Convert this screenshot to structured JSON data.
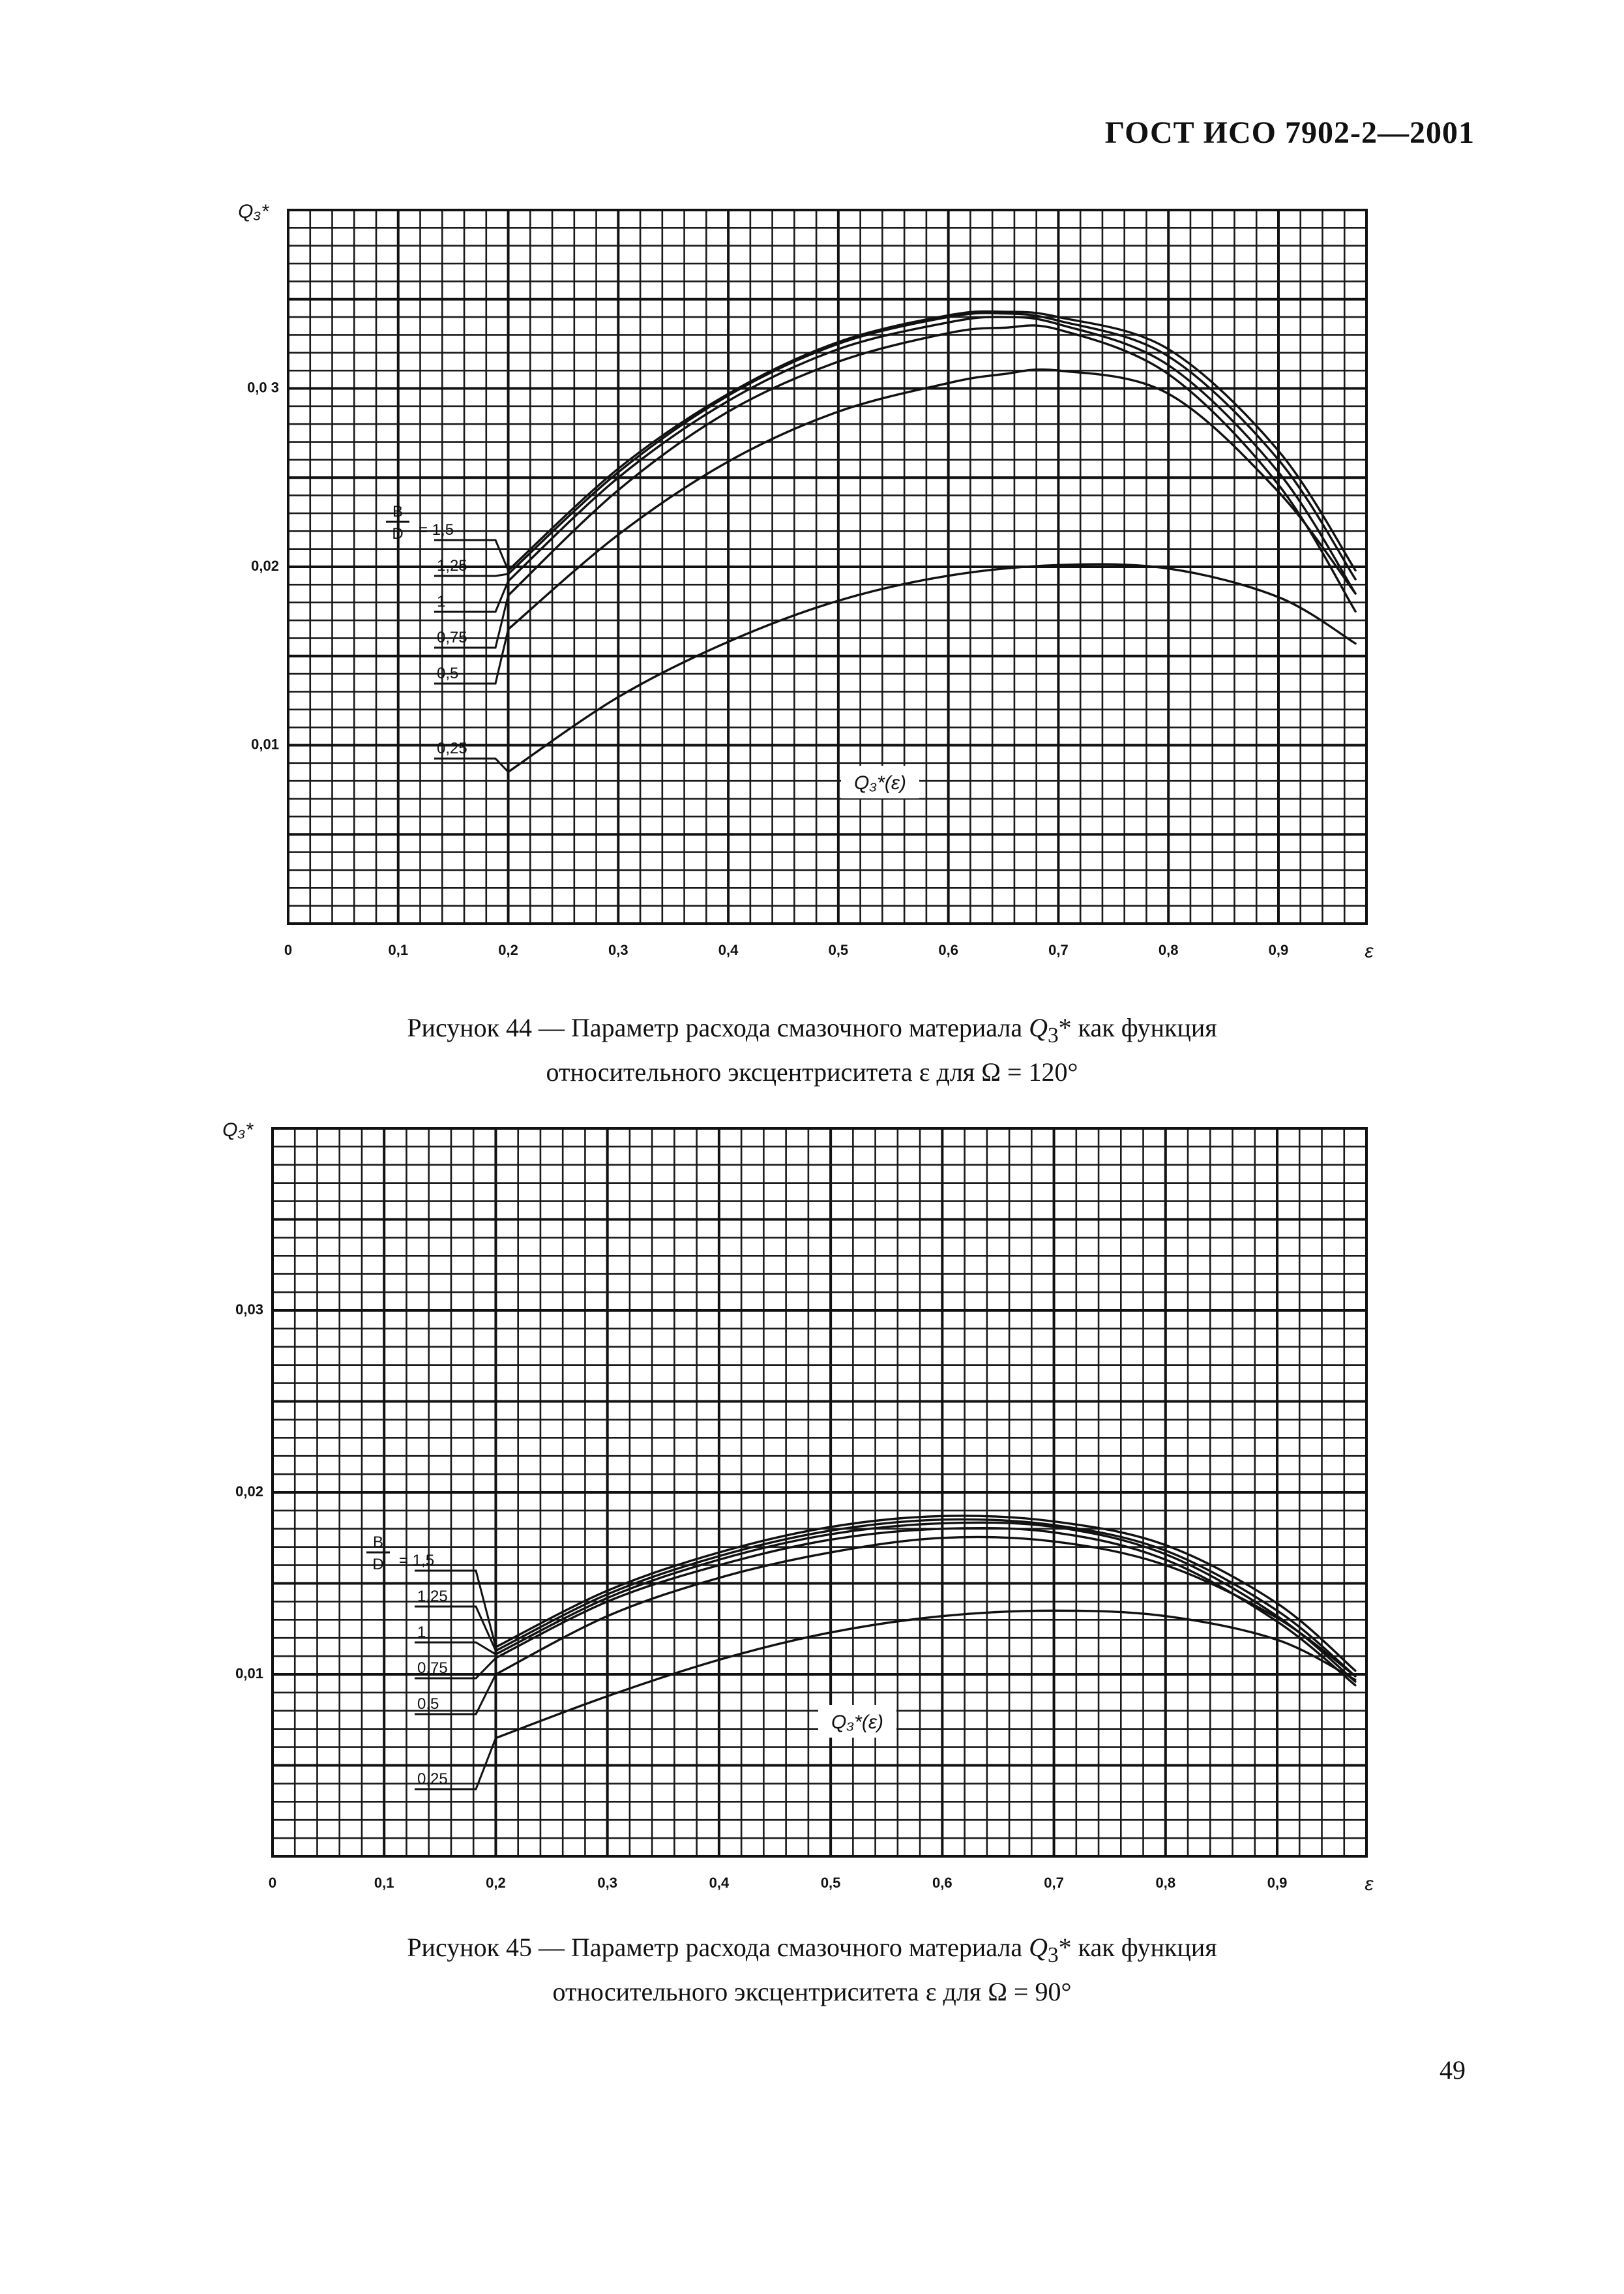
{
  "header": {
    "standard": "ГОСТ ИСО 7902-2—2001"
  },
  "page": {
    "number": "49"
  },
  "figures": [
    {
      "caption": {
        "line1_prefix": "Рисунок 44 — Параметр расхода смазочного материала ",
        "symbol": "Q",
        "symbol_sub": "3",
        "symbol_sup": "*",
        "line1_suffix": " как функция",
        "line2": "относительного эксцентриситета ε для Ω = 120°"
      },
      "y_axis_symbol": "Q₃*",
      "x_axis_symbol": "ε",
      "function_label": "Q₃*(ε)",
      "bd_label": "B/D",
      "series_labels": [
        "= 1,5",
        "1,25",
        "1",
        "0,75",
        "0,5",
        "0,25"
      ]
    },
    {
      "caption": {
        "line1_prefix": "Рисунок 45 — Параметр расхода смазочного материала ",
        "symbol": "Q",
        "symbol_sub": "3",
        "symbol_sup": "*",
        "line1_suffix": " как функция",
        "line2": "относительного эксцентриситета ε для Ω = 90°"
      },
      "y_axis_symbol": "Q₃*",
      "x_axis_symbol": "ε",
      "function_label": "Q₃*(ε)",
      "bd_label": "B/D",
      "series_labels": [
        "= 1,5",
        "1,25",
        "1",
        "0,75",
        "0,5",
        "0,25"
      ]
    }
  ],
  "chart_data": [
    {
      "type": "line",
      "xlabel": "ε",
      "ylabel": "Q₃*",
      "xlim": [
        0,
        0.98
      ],
      "ylim": [
        0,
        0.04
      ],
      "x_ticks": [
        "0",
        "0,1",
        "0,2",
        "0,3",
        "0,4",
        "0,5",
        "0,6",
        "0,7",
        "0,8",
        "0,9"
      ],
      "y_ticks": [
        {
          "value": 0.01,
          "label": "0,01"
        },
        {
          "value": 0.02,
          "label": "0,02"
        },
        {
          "value": 0.03,
          "label": "0,0 3"
        }
      ],
      "grid": true,
      "series": [
        {
          "name": "1,5",
          "x": [
            0.2,
            0.3,
            0.4,
            0.5,
            0.6,
            0.65,
            0.7,
            0.8,
            0.9,
            0.97
          ],
          "y": [
            0.0198,
            0.0255,
            0.0297,
            0.0326,
            0.0341,
            0.0343,
            0.034,
            0.0322,
            0.0265,
            0.0198
          ]
        },
        {
          "name": "1,25",
          "x": [
            0.2,
            0.3,
            0.4,
            0.5,
            0.6,
            0.65,
            0.7,
            0.8,
            0.9,
            0.97
          ],
          "y": [
            0.0196,
            0.0253,
            0.0296,
            0.0325,
            0.034,
            0.0342,
            0.0338,
            0.0318,
            0.026,
            0.0193
          ]
        },
        {
          "name": "1",
          "x": [
            0.2,
            0.3,
            0.4,
            0.5,
            0.6,
            0.65,
            0.7,
            0.8,
            0.9,
            0.97
          ],
          "y": [
            0.0192,
            0.025,
            0.0293,
            0.0322,
            0.0337,
            0.034,
            0.0336,
            0.0313,
            0.0253,
            0.0185
          ]
        },
        {
          "name": "0,75",
          "x": [
            0.2,
            0.3,
            0.4,
            0.5,
            0.6,
            0.65,
            0.7,
            0.8,
            0.9,
            0.97
          ],
          "y": [
            0.0184,
            0.0243,
            0.0287,
            0.0315,
            0.0331,
            0.0334,
            0.0333,
            0.0308,
            0.0246,
            0.0175
          ]
        },
        {
          "name": "0,5",
          "x": [
            0.2,
            0.3,
            0.4,
            0.5,
            0.6,
            0.65,
            0.7,
            0.8,
            0.9,
            0.97
          ],
          "y": [
            0.0165,
            0.0218,
            0.0259,
            0.0287,
            0.0303,
            0.0308,
            0.031,
            0.0297,
            0.0242,
            0.0185
          ]
        },
        {
          "name": "0,25",
          "x": [
            0.2,
            0.3,
            0.4,
            0.5,
            0.6,
            0.7,
            0.8,
            0.9,
            0.97
          ],
          "y": [
            0.0085,
            0.0127,
            0.0158,
            0.0181,
            0.0195,
            0.0201,
            0.0199,
            0.0183,
            0.0157
          ]
        }
      ]
    },
    {
      "type": "line",
      "xlabel": "ε",
      "ylabel": "Q₃*",
      "xlim": [
        0,
        0.98
      ],
      "ylim": [
        0,
        0.04
      ],
      "x_ticks": [
        "0",
        "0,1",
        "0,2",
        "0,3",
        "0,4",
        "0,5",
        "0,6",
        "0,7",
        "0,8",
        "0,9"
      ],
      "y_ticks": [
        {
          "value": 0.01,
          "label": "0,01"
        },
        {
          "value": 0.02,
          "label": "0,02"
        },
        {
          "value": 0.03,
          "label": "0,03"
        }
      ],
      "grid": true,
      "series": [
        {
          "name": "1,5",
          "x": [
            0.2,
            0.3,
            0.4,
            0.5,
            0.6,
            0.7,
            0.8,
            0.9,
            0.97
          ],
          "y": [
            0.0115,
            0.0146,
            0.0167,
            0.0181,
            0.0187,
            0.0184,
            0.0171,
            0.0139,
            0.0102
          ]
        },
        {
          "name": "1,25",
          "x": [
            0.2,
            0.3,
            0.4,
            0.5,
            0.6,
            0.7,
            0.8,
            0.9,
            0.97
          ],
          "y": [
            0.0113,
            0.0144,
            0.0165,
            0.0179,
            0.0185,
            0.0182,
            0.0168,
            0.0135,
            0.0099
          ]
        },
        {
          "name": "1",
          "x": [
            0.2,
            0.3,
            0.4,
            0.5,
            0.6,
            0.7,
            0.8,
            0.9,
            0.97
          ],
          "y": [
            0.0111,
            0.0142,
            0.0163,
            0.0177,
            0.0183,
            0.0181,
            0.0166,
            0.0132,
            0.0096
          ]
        },
        {
          "name": "0,75",
          "x": [
            0.2,
            0.3,
            0.4,
            0.5,
            0.6,
            0.7,
            0.8,
            0.9,
            0.97
          ],
          "y": [
            0.0109,
            0.014,
            0.016,
            0.0174,
            0.018,
            0.0178,
            0.0163,
            0.0129,
            0.0094
          ]
        },
        {
          "name": "0,5",
          "x": [
            0.2,
            0.3,
            0.4,
            0.5,
            0.6,
            0.7,
            0.8,
            0.9,
            0.97
          ],
          "y": [
            0.01,
            0.0132,
            0.0153,
            0.0167,
            0.0175,
            0.0173,
            0.016,
            0.0131,
            0.0099
          ]
        },
        {
          "name": "0,25",
          "x": [
            0.2,
            0.3,
            0.4,
            0.5,
            0.6,
            0.7,
            0.8,
            0.9,
            0.97
          ],
          "y": [
            0.0065,
            0.0088,
            0.0108,
            0.0123,
            0.0132,
            0.0135,
            0.0132,
            0.0119,
            0.0097
          ]
        }
      ]
    }
  ]
}
